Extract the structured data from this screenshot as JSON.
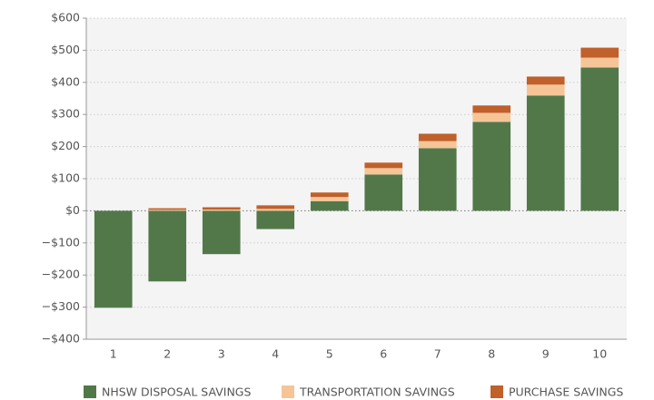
{
  "chart_data": {
    "type": "stacked_bar",
    "categories": [
      "1",
      "2",
      "3",
      "4",
      "5",
      "6",
      "7",
      "8",
      "9",
      "10"
    ],
    "series": [
      {
        "name": "NHSW DISPOSAL SAVINGS",
        "color": "#52784a",
        "values": [
          -302,
          -220,
          -135,
          -57,
          30,
          113,
          195,
          277,
          359,
          446
        ]
      },
      {
        "name": "TRANSPORTATION SAVINGS",
        "color": "#f6c597",
        "values": [
          0,
          3,
          4,
          6,
          13,
          20,
          22,
          28,
          34,
          31
        ]
      },
      {
        "name": "PURCHASE SAVINGS",
        "color": "#c0602a",
        "values": [
          0,
          5,
          7,
          11,
          14,
          17,
          23,
          23,
          25,
          31
        ]
      }
    ],
    "ylim": [
      -400,
      600
    ],
    "yticks": [
      {
        "value": -400,
        "label": "−$400"
      },
      {
        "value": -300,
        "label": "−$300"
      },
      {
        "value": -200,
        "label": "−$200"
      },
      {
        "value": -100,
        "label": "−$100"
      },
      {
        "value": 0,
        "label": "$0"
      },
      {
        "value": 100,
        "label": "$100"
      },
      {
        "value": 200,
        "label": "$200"
      },
      {
        "value": 300,
        "label": "$300"
      },
      {
        "value": 400,
        "label": "$400"
      },
      {
        "value": 500,
        "label": "$500"
      },
      {
        "value": 600,
        "label": "$600"
      }
    ],
    "grid": true,
    "legend": "bottom"
  }
}
